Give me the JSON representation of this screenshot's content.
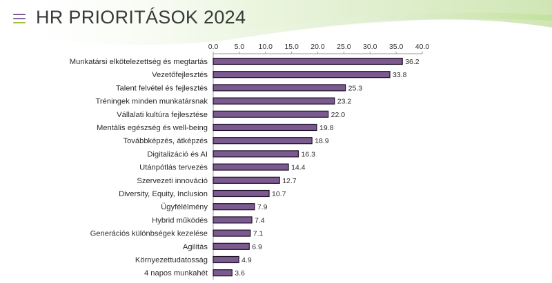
{
  "slide": {
    "title": "HR PRIORITÁSOK 2024",
    "menu_icon": "hamburger-menu-icon",
    "colors": {
      "bar_fill": "#7a5a8f",
      "bar_stroke": "#1e1228",
      "menu_top": "#7a5a8f",
      "menu_mid": "#8a63a0",
      "menu_bottom": "#9bc43a",
      "accent_green": "#b9dd8a"
    }
  },
  "chart_data": {
    "type": "bar",
    "orientation": "horizontal",
    "title": "",
    "xlabel": "",
    "ylabel": "",
    "xlim": [
      0,
      40
    ],
    "x_ticks": [
      "0.0",
      "5.0",
      "10.0",
      "15.0",
      "20.0",
      "25.0",
      "30.0",
      "35.0",
      "40.0"
    ],
    "x_axis_position": "top",
    "grid": false,
    "legend": "none",
    "categories": [
      "Munkatársi elkötelezettség és megtartás",
      "Vezetőfejlesztés",
      "Talent felvétel és fejlesztés",
      "Tréningek minden munkatársnak",
      "Vállalati kultúra fejlesztése",
      "Mentális egészség és well-being",
      "Továbbképzés, átképzés",
      "Digitalizáció és AI",
      "Utánpótlás tervezés",
      "Szervezeti innováció",
      "Diversity, Equity, Inclusion",
      "Ügyfélélmény",
      "Hybrid működés",
      "Generációs különbségek kezelése",
      "Agilitás",
      "Környezettudatosság",
      "4 napos munkahét"
    ],
    "values": [
      36.2,
      33.8,
      25.3,
      23.2,
      22.0,
      19.8,
      18.9,
      16.3,
      14.4,
      12.7,
      10.7,
      7.9,
      7.4,
      7.1,
      6.9,
      4.9,
      3.6
    ],
    "value_labels": [
      "36.2",
      "33.8",
      "25.3",
      "23.2",
      "22.0",
      "19.8",
      "18.9",
      "16.3",
      "14.4",
      "12.7",
      "10.7",
      "7.9",
      "7.4",
      "7.1",
      "6.9",
      "4.9",
      "3.6"
    ]
  }
}
